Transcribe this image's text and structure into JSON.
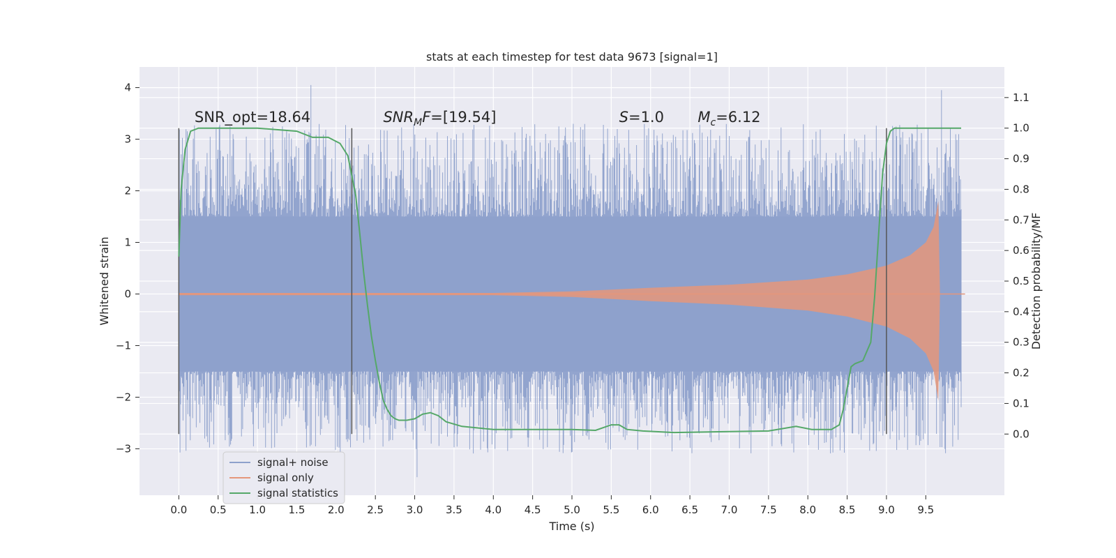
{
  "chart_data": {
    "type": "line",
    "title": "stats at each timestep for test data 9673 [signal=1]",
    "xlabel": "Time (s)",
    "ylabel": "Whitened strain",
    "ylabel_right": "Detection probability/MF",
    "xlim": [
      -0.5,
      10.5
    ],
    "ylim": [
      -3.9,
      4.4
    ],
    "ylim_right": [
      -0.2,
      1.2
    ],
    "xticks": [
      0.0,
      0.5,
      1.0,
      1.5,
      2.0,
      2.5,
      3.0,
      3.5,
      4.0,
      4.5,
      5.0,
      5.5,
      6.0,
      6.5,
      7.0,
      7.5,
      8.0,
      8.5,
      9.0,
      9.5
    ],
    "xtick_labels": [
      "0.0",
      "0.5",
      "1.0",
      "1.5",
      "2.0",
      "2.5",
      "3.0",
      "3.5",
      "4.0",
      "4.5",
      "5.0",
      "5.5",
      "6.0",
      "6.5",
      "7.0",
      "7.5",
      "8.0",
      "8.5",
      "9.0",
      "9.5"
    ],
    "yticks": [
      -3,
      -2,
      -1,
      0,
      1,
      2,
      3,
      4
    ],
    "ytick_labels": [
      "−3",
      "−2",
      "−1",
      "0",
      "1",
      "2",
      "3",
      "4"
    ],
    "yticks_right": [
      0.0,
      0.1,
      0.2,
      0.3,
      0.4,
      0.5,
      0.6,
      0.7,
      0.8,
      0.9,
      1.0,
      1.1
    ],
    "ytick_labels_right": [
      "0.0",
      "0.1",
      "0.2",
      "0.3",
      "0.4",
      "0.5",
      "0.6",
      "0.7",
      "0.8",
      "0.9",
      "1.0",
      "1.1"
    ],
    "grid": true,
    "legend_position": "lower-left",
    "colors": {
      "noise": "#8da0cb",
      "signal": "#e5967a",
      "stats": "#55a868",
      "vline": "#555555",
      "background": "#eaeaf2",
      "grid": "#ffffff"
    },
    "series": [
      {
        "name": "signal+ noise",
        "kind": "noise-band",
        "x_range": [
          0.0,
          9.95
        ],
        "core_range": [
          -1.5,
          1.5
        ],
        "max": 4.05,
        "min": -3.55
      },
      {
        "name": "signal only",
        "kind": "chirp-envelope",
        "envelope": [
          [
            0.0,
            0.02
          ],
          [
            2.0,
            0.02
          ],
          [
            4.0,
            0.02
          ],
          [
            5.0,
            0.05
          ],
          [
            6.0,
            0.12
          ],
          [
            7.0,
            0.18
          ],
          [
            8.0,
            0.28
          ],
          [
            8.5,
            0.38
          ],
          [
            9.0,
            0.55
          ],
          [
            9.3,
            0.75
          ],
          [
            9.5,
            1.0
          ],
          [
            9.6,
            1.3
          ],
          [
            9.66,
            1.8
          ],
          [
            9.68,
            0.0
          ],
          [
            10.0,
            0.0
          ]
        ]
      },
      {
        "name": "signal statistics",
        "kind": "line",
        "axis": "right",
        "x": [
          0.0,
          0.03,
          0.08,
          0.15,
          0.25,
          0.5,
          1.0,
          1.5,
          1.7,
          1.9,
          2.05,
          2.15,
          2.25,
          2.3,
          2.35,
          2.4,
          2.45,
          2.5,
          2.55,
          2.6,
          2.65,
          2.7,
          2.75,
          2.8,
          2.9,
          3.0,
          3.1,
          3.2,
          3.3,
          3.4,
          3.6,
          4.0,
          4.5,
          5.0,
          5.3,
          5.5,
          5.6,
          5.7,
          5.9,
          6.3,
          7.0,
          7.5,
          7.85,
          8.05,
          8.3,
          8.4,
          8.45,
          8.5,
          8.55,
          8.6,
          8.7,
          8.8,
          8.85,
          8.9,
          8.95,
          9.0,
          9.05,
          9.1,
          9.2,
          9.5,
          9.95
        ],
        "y": [
          0.58,
          0.8,
          0.93,
          0.99,
          1.0,
          1.0,
          1.0,
          0.99,
          0.97,
          0.97,
          0.95,
          0.91,
          0.78,
          0.66,
          0.53,
          0.42,
          0.32,
          0.24,
          0.17,
          0.11,
          0.08,
          0.06,
          0.05,
          0.045,
          0.045,
          0.05,
          0.065,
          0.07,
          0.06,
          0.04,
          0.025,
          0.015,
          0.015,
          0.015,
          0.012,
          0.03,
          0.03,
          0.015,
          0.01,
          0.005,
          0.008,
          0.01,
          0.025,
          0.015,
          0.015,
          0.03,
          0.08,
          0.15,
          0.22,
          0.23,
          0.24,
          0.3,
          0.45,
          0.65,
          0.85,
          0.95,
          0.99,
          1.0,
          1.0,
          1.0,
          1.0
        ]
      }
    ],
    "vlines": [
      0.0,
      2.2,
      9.0
    ],
    "vline_range_right": [
      0.0,
      1.0
    ],
    "annotations": [
      {
        "x": 0.2,
        "y_right": 1.02,
        "text": "SNR_opt=18.64"
      },
      {
        "x": 2.6,
        "y_right": 1.02,
        "prefix": "SNR",
        "sub": "M",
        "suffix": "F=[19.54]"
      },
      {
        "x": 5.6,
        "y_right": 1.02,
        "italic": "S",
        "suffix": "=1.0"
      },
      {
        "x": 6.6,
        "y_right": 1.02,
        "prefix": "M",
        "sub": "c",
        "suffix": "=6.12"
      }
    ]
  }
}
